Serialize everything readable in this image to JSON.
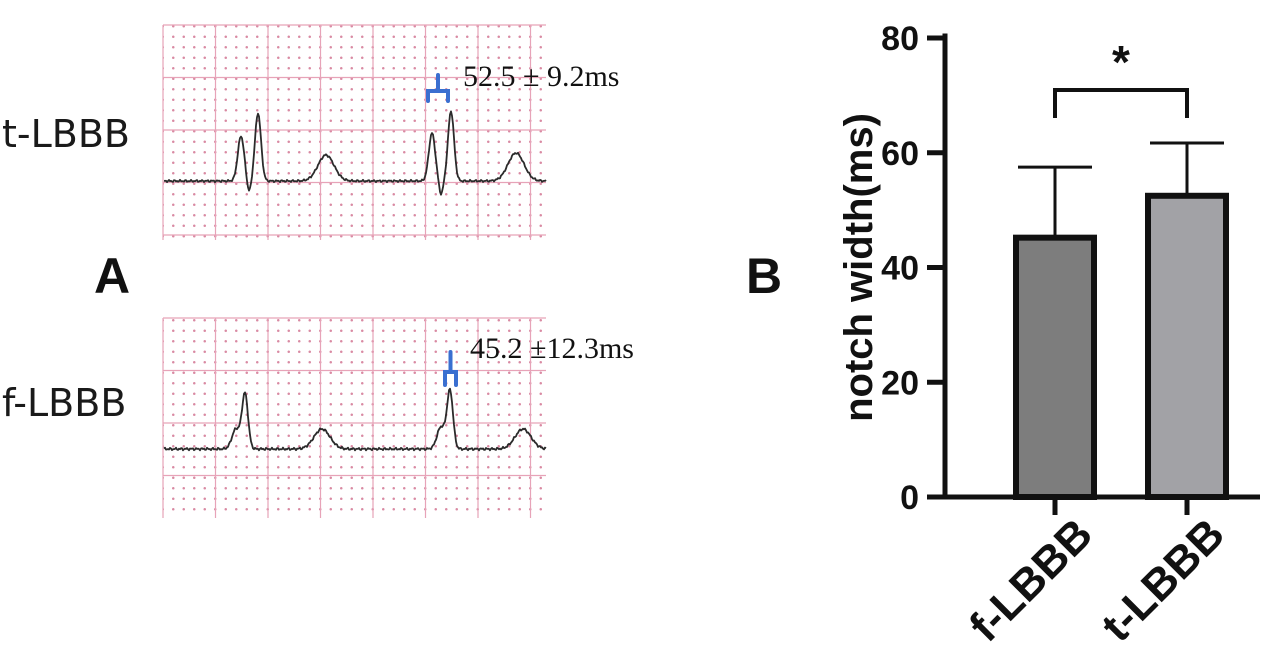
{
  "panel_a": {
    "letter": "A",
    "strips": [
      {
        "label": "t-LBBB",
        "measurement": "52.5 ± 9.2ms"
      },
      {
        "label": "f-LBBB",
        "measurement": "45.2 ±12.3ms"
      }
    ],
    "colors": {
      "grid": "#e7a3b8",
      "grid_dots": "#d98aa3",
      "trace": "#2b2b2b",
      "bracket": "#3a6fd0"
    }
  },
  "panel_b": {
    "letter": "B"
  },
  "chart_data": {
    "type": "bar",
    "categories": [
      "f-LBBB",
      "t-LBBB"
    ],
    "values": [
      45.2,
      52.5
    ],
    "errors": [
      12.3,
      9.2
    ],
    "ylabel": "notch width(ms)",
    "xlabel": "",
    "ylim": [
      0,
      80
    ],
    "yticks": [
      0,
      20,
      40,
      60,
      80
    ],
    "significance": {
      "between": [
        "f-LBBB",
        "t-LBBB"
      ],
      "label": "*"
    },
    "bar_colors": [
      "#7d7d7d",
      "#a2a2a6"
    ],
    "grid": false,
    "legend": "none"
  }
}
